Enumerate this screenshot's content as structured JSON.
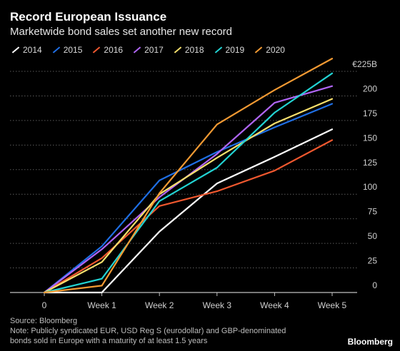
{
  "title": "Record European Issuance",
  "subtitle": "Marketwide bond sales set another new record",
  "source": "Source: Bloomberg",
  "note_line1": "Note: Publicly syndicated EUR, USD Reg S (eurodollar) and GBP-denominated",
  "note_line2": "bonds sold in Europe with a maturity of at least 1.5 years",
  "brand": "Bloomberg",
  "chart_data": {
    "type": "line",
    "title": "Record European Issuance",
    "subtitle": "Marketwide bond sales set another new record",
    "xlabel": "",
    "ylabel": "",
    "categories": [
      "0",
      "Week 1",
      "Week 2",
      "Week 3",
      "Week 4",
      "Week 5"
    ],
    "y_tick_labels": [
      "0",
      "25",
      "50",
      "75",
      "100",
      "125",
      "150",
      "175",
      "200",
      "€225B"
    ],
    "y_ticks": [
      0,
      25,
      50,
      75,
      100,
      125,
      150,
      175,
      200,
      225
    ],
    "ylim": [
      0,
      225
    ],
    "grid": true,
    "legend_position": "top",
    "series": [
      {
        "name": "2014",
        "color": "#ffffff",
        "values": [
          0,
          0,
          62,
          111,
          138,
          166
        ]
      },
      {
        "name": "2015",
        "color": "#1f6fe5",
        "values": [
          0,
          47,
          114,
          143,
          168,
          192
        ]
      },
      {
        "name": "2016",
        "color": "#f0582f",
        "values": [
          0,
          35,
          88,
          103,
          124,
          155
        ]
      },
      {
        "name": "2017",
        "color": "#b066f7",
        "values": [
          0,
          44,
          97,
          141,
          193,
          210
        ]
      },
      {
        "name": "2018",
        "color": "#f7e06d",
        "values": [
          0,
          31,
          100,
          137,
          172,
          197
        ]
      },
      {
        "name": "2019",
        "color": "#22d3d3",
        "values": [
          0,
          14,
          93,
          127,
          183,
          223
        ]
      },
      {
        "name": "2020",
        "color": "#f39a33",
        "values": [
          0,
          7,
          101,
          171,
          206,
          238
        ]
      }
    ]
  }
}
